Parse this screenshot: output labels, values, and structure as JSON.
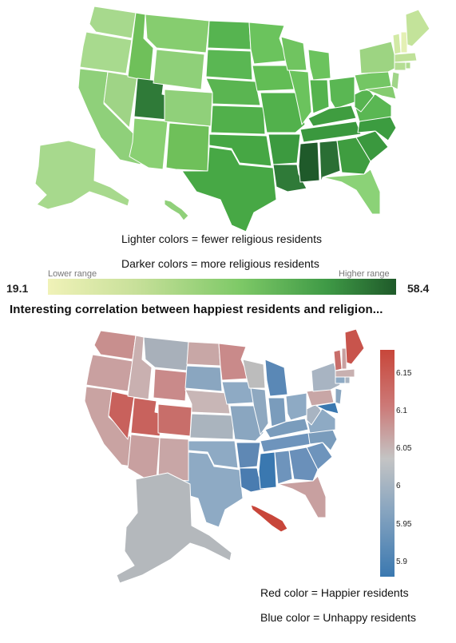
{
  "map_top": {
    "captions": {
      "lighter": "Lighter colors = fewer religious residents",
      "darker": "Darker colors = more religious residents"
    },
    "scale": {
      "min_value": "19.1",
      "max_value": "58.4",
      "lower_label": "Lower range",
      "higher_label": "Higher range",
      "colors": [
        "#f0f2b8",
        "#c8e09a",
        "#7ec967",
        "#3f9a46",
        "#1f5a2a"
      ]
    }
  },
  "headline": "Interesting correlation between happiest residents and religion...",
  "map_bottom": {
    "legend_ticks": [
      "6.15",
      "6.1",
      "6.05",
      "6",
      "5.95",
      "5.9"
    ],
    "legend_colors": [
      "#c8463a",
      "#cc7a78",
      "#c4c4c4",
      "#8aa6c0",
      "#3a78b0"
    ],
    "captions": {
      "red": "Red color =  Happier residents",
      "blue": "Blue color  = Unhappy residents"
    }
  }
}
